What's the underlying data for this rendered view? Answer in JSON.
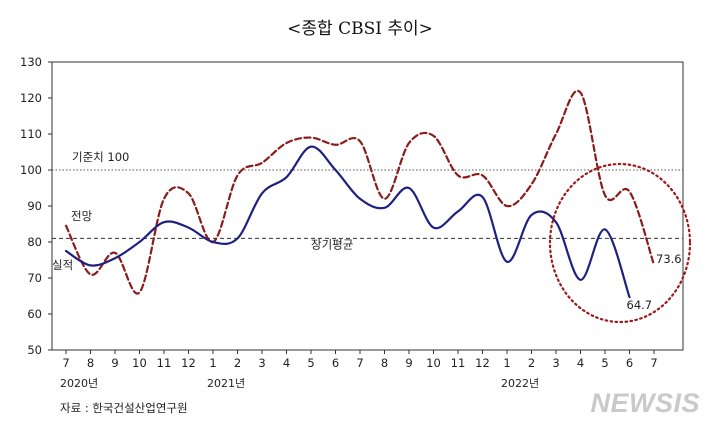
{
  "chart_data": {
    "type": "line",
    "title": "<종합 CBSI 추이>",
    "xlabel": "",
    "ylabel": "",
    "ylim": [
      50,
      130
    ],
    "yticks": [
      50,
      60,
      70,
      80,
      90,
      100,
      110,
      120,
      130
    ],
    "categories": [
      "7",
      "8",
      "9",
      "10",
      "11",
      "12",
      "1",
      "2",
      "3",
      "4",
      "5",
      "6",
      "7",
      "8",
      "9",
      "10",
      "11",
      "12",
      "1",
      "2",
      "3",
      "4",
      "5",
      "6",
      "7"
    ],
    "year_labels": [
      {
        "label": "2020년",
        "category_index": 0
      },
      {
        "label": "2021년",
        "category_index": 6
      },
      {
        "label": "2022년",
        "category_index": 18
      }
    ],
    "series": [
      {
        "name": "실적",
        "style": "solid",
        "color": "#1f2080",
        "values": [
          77.5,
          73.5,
          75.5,
          80,
          85.5,
          84,
          80,
          81,
          93.5,
          98,
          106.5,
          100,
          92,
          89.5,
          95,
          84,
          88.5,
          92.5,
          74.5,
          87.5,
          85.5,
          69.5,
          83.5,
          64.7,
          null
        ]
      },
      {
        "name": "전망",
        "style": "dashed",
        "color": "#8b1c1c",
        "values": [
          84.5,
          71,
          77,
          66,
          92,
          93.5,
          80,
          98.5,
          102,
          107.5,
          109,
          107,
          108,
          92,
          107.5,
          109.5,
          98.5,
          98.5,
          90,
          96,
          110,
          121.5,
          93,
          94,
          73.6
        ]
      }
    ],
    "reference_lines": [
      {
        "name": "기준치 100",
        "value": 100,
        "style": "dotted"
      },
      {
        "name": "장기평균",
        "value": 81,
        "style": "dashed"
      }
    ],
    "annotations": {
      "last_actual": "64.7",
      "last_forecast": "73.6",
      "highlight": "dotted circle around 2022.3 – 2022.7"
    },
    "legend": [
      "전망",
      "실적"
    ]
  },
  "source": "자료 : 한국건설산업연구원",
  "watermark": "NEWSIS"
}
